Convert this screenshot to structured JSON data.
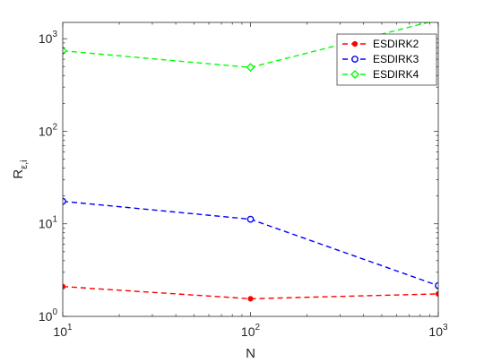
{
  "chart_data": {
    "type": "line",
    "xlabel": "N",
    "ylabel": {
      "base": "R",
      "subscript": "ε,i"
    },
    "x_scale": "log",
    "y_scale": "log",
    "xlim": [
      10,
      1000
    ],
    "ylim": [
      1,
      1500
    ],
    "x_ticks": [
      {
        "value": 10,
        "base": "10",
        "exp": "1"
      },
      {
        "value": 100,
        "base": "10",
        "exp": "2"
      },
      {
        "value": 1000,
        "base": "10",
        "exp": "3"
      }
    ],
    "y_ticks": [
      {
        "value": 1,
        "base": "10",
        "exp": "0"
      },
      {
        "value": 10,
        "base": "10",
        "exp": "1"
      },
      {
        "value": 100,
        "base": "10",
        "exp": "2"
      },
      {
        "value": 1000,
        "base": "10",
        "exp": "3"
      }
    ],
    "x": [
      10,
      100,
      1000
    ],
    "series": [
      {
        "name": "ESDIRK2",
        "values": [
          2.1,
          1.55,
          1.75
        ],
        "color": "#ff0000",
        "marker": "dot"
      },
      {
        "name": "ESDIRK3",
        "values": [
          17.5,
          11.2,
          2.15
        ],
        "color": "#0000ff",
        "marker": "circle"
      },
      {
        "name": "ESDIRK4",
        "values": [
          740,
          490,
          1600
        ],
        "color": "#00ff00",
        "marker": "diamond"
      }
    ],
    "legend_position": "top-right",
    "grid": false
  }
}
